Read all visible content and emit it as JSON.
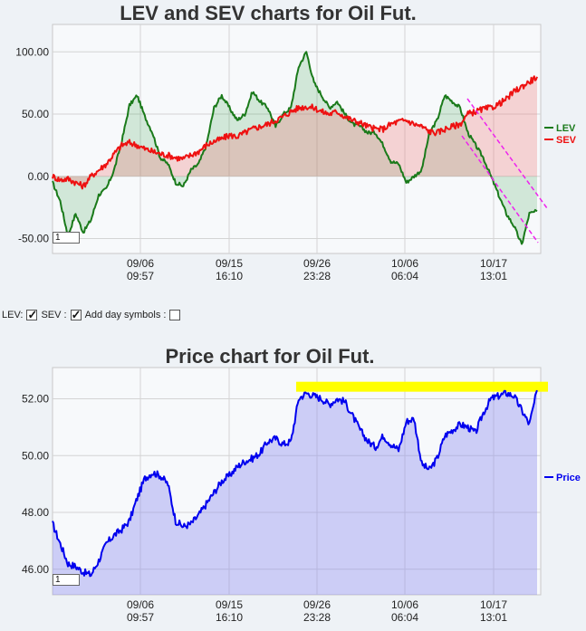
{
  "controls": {
    "lev_label": "LEV:",
    "sev_label": "SEV :",
    "day_symbols_label": "Add day symbols :",
    "lev_checked": true,
    "sev_checked": true,
    "day_symbols_checked": false
  },
  "chart_data": [
    {
      "type": "area",
      "title": "LEV and SEV charts for Oil Fut.",
      "page_box": "1",
      "x_ticks": [
        {
          "date": "09/06",
          "time": "09:57"
        },
        {
          "date": "09/15",
          "time": "16:10"
        },
        {
          "date": "09/26",
          "time": "23:28"
        },
        {
          "date": "10/06",
          "time": "06:04"
        },
        {
          "date": "10/17",
          "time": "13:01"
        }
      ],
      "y_ticks": [
        "100.00",
        "50.00",
        "0.00",
        "-50.00"
      ],
      "ylim": [
        -62,
        122
      ],
      "grid": true,
      "legend_position": "right",
      "series": [
        {
          "name": "LEV",
          "color": "#1a7a1a",
          "fill": "rgba(40,150,60,0.18)",
          "values": [
            -5,
            -20,
            -48,
            -30,
            -45,
            -35,
            -15,
            -10,
            5,
            28,
            57,
            65,
            48,
            35,
            15,
            10,
            -5,
            -8,
            5,
            10,
            25,
            55,
            65,
            55,
            45,
            50,
            68,
            60,
            55,
            40,
            50,
            55,
            88,
            100,
            75,
            65,
            55,
            60,
            50,
            42,
            40,
            35,
            35,
            25,
            12,
            10,
            -5,
            0,
            5,
            35,
            45,
            65,
            60,
            55,
            35,
            25,
            15,
            0,
            -15,
            -30,
            -40,
            -55,
            -30,
            -28
          ]
        },
        {
          "name": "SEV",
          "color": "#ee1111",
          "fill": "rgba(240,120,120,0.30)",
          "values": [
            0,
            -3,
            -2,
            -5,
            -8,
            0,
            5,
            10,
            18,
            25,
            27,
            25,
            22,
            20,
            18,
            17,
            15,
            14,
            17,
            20,
            25,
            28,
            30,
            33,
            32,
            35,
            38,
            40,
            42,
            45,
            48,
            52,
            55,
            56,
            55,
            52,
            50,
            52,
            48,
            45,
            43,
            40,
            38,
            38,
            42,
            44,
            45,
            42,
            40,
            36,
            35,
            38,
            40,
            42,
            50,
            52,
            54,
            55,
            58,
            62,
            68,
            72,
            76,
            80
          ]
        }
      ],
      "annotations": [
        {
          "type": "trend-channel",
          "color": "#ee22ee",
          "style": "dashed"
        }
      ]
    },
    {
      "type": "area",
      "title": "Price chart for Oil Fut.",
      "page_box": "1",
      "x_ticks": [
        {
          "date": "09/06",
          "time": "09:57"
        },
        {
          "date": "09/15",
          "time": "16:10"
        },
        {
          "date": "09/26",
          "time": "23:28"
        },
        {
          "date": "10/06",
          "time": "06:04"
        },
        {
          "date": "10/17",
          "time": "13:01"
        }
      ],
      "y_ticks": [
        "52.00",
        "50.00",
        "48.00",
        "46.00"
      ],
      "ylim": [
        45.1,
        53.1
      ],
      "grid": true,
      "legend_position": "right",
      "series": [
        {
          "name": "Price",
          "color": "#0000ee",
          "fill": "rgba(140,140,240,0.40)",
          "values": [
            47.6,
            46.9,
            46.2,
            46.1,
            45.9,
            45.8,
            46.3,
            46.9,
            47.2,
            47.4,
            47.7,
            48.5,
            49.2,
            49.4,
            49.3,
            49.0,
            47.7,
            47.5,
            47.6,
            47.9,
            48.3,
            48.7,
            49.1,
            49.3,
            49.6,
            49.8,
            49.9,
            50.1,
            50.5,
            50.6,
            50.4,
            50.5,
            52.0,
            52.2,
            52.1,
            52.0,
            51.8,
            52.0,
            51.9,
            51.4,
            50.9,
            50.5,
            50.3,
            50.7,
            50.4,
            50.2,
            51.2,
            51.3,
            49.7,
            49.5,
            49.9,
            50.7,
            50.9,
            51.1,
            51.0,
            50.8,
            51.5,
            52.0,
            52.1,
            52.2,
            52.1,
            51.6,
            51.1,
            52.3
          ]
        }
      ],
      "annotations": [
        {
          "type": "highlight-band",
          "color": "#ffff00",
          "y_range": [
            52.25,
            52.6
          ]
        }
      ]
    }
  ]
}
